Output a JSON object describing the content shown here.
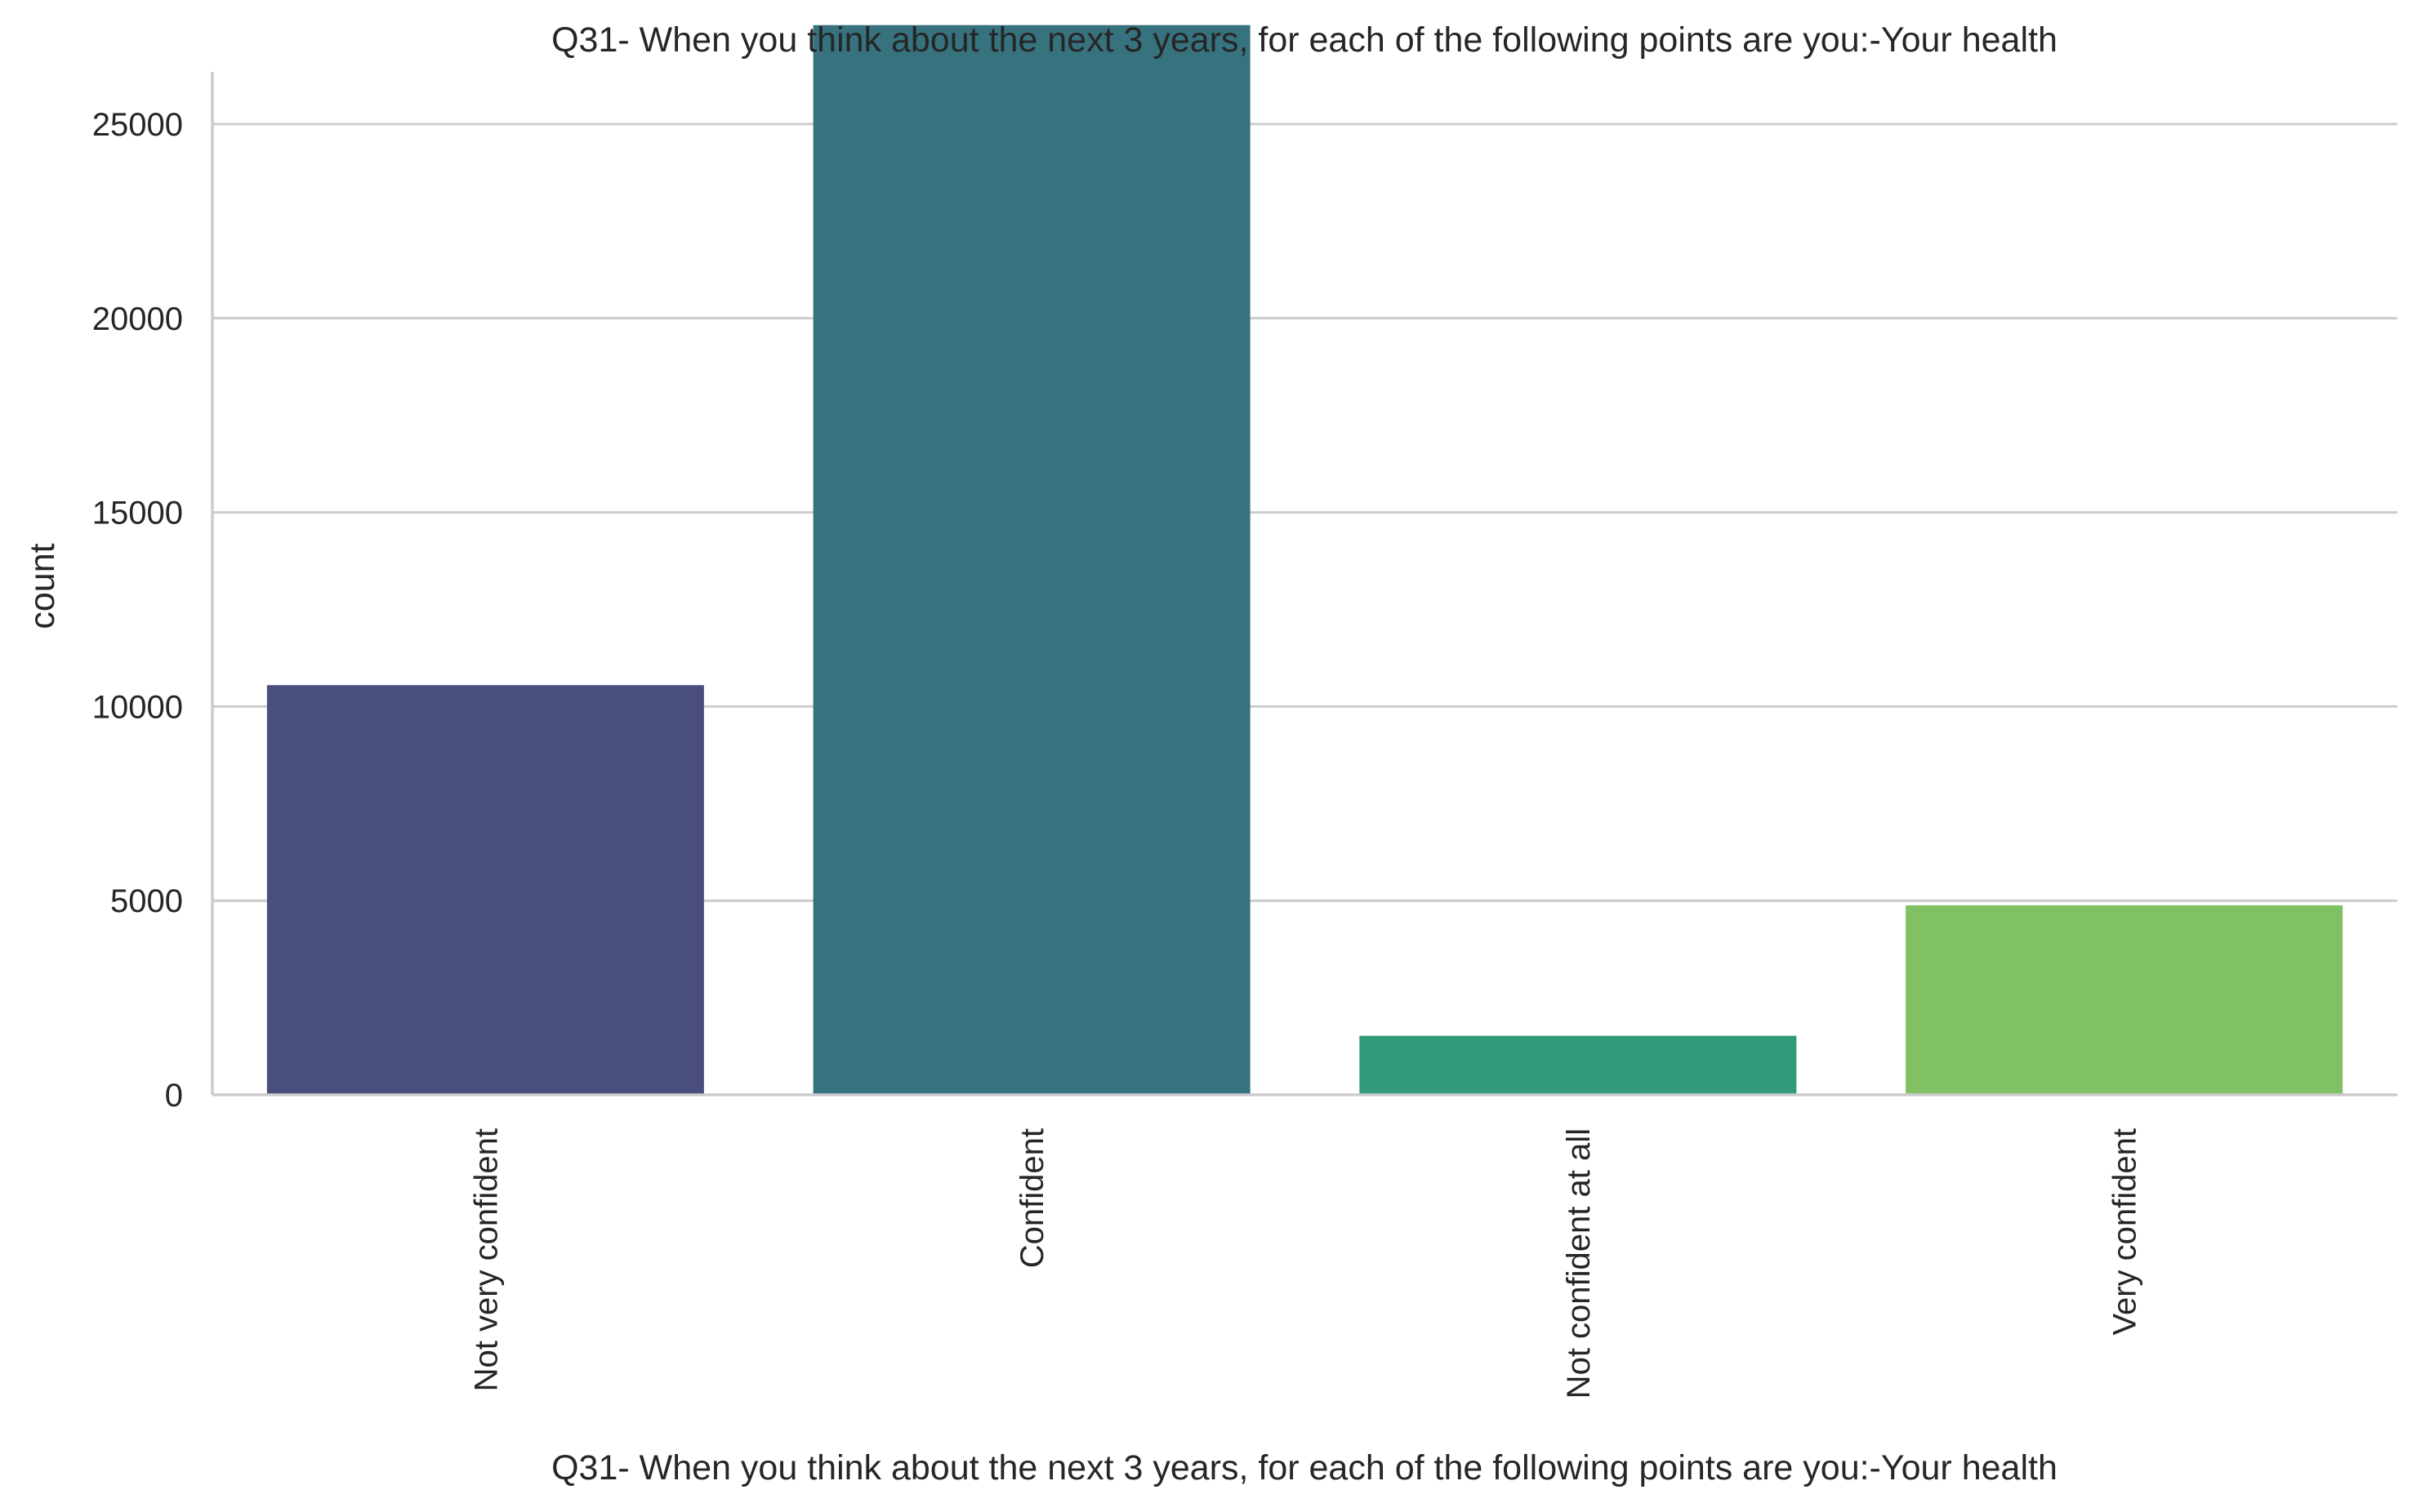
{
  "chart_data": {
    "type": "bar",
    "title": "Q31- When you think about the next 3 years, for each of the following points are you:-Your health",
    "xlabel": "Q31- When you think about the next 3 years, for each of the following points are you:-Your health",
    "ylabel": "count",
    "categories": [
      "Not very confident",
      "Confident",
      "Not confident at all",
      "Very confident"
    ],
    "values": [
      10550,
      27550,
      1520,
      4880
    ],
    "colors": [
      "#4a4e7d",
      "#37727f",
      "#33997b",
      "#80c263"
    ],
    "ylim": [
      0,
      29000
    ],
    "yticks": [
      0,
      5000,
      10000,
      15000,
      20000,
      25000
    ],
    "grid": "horizontal",
    "legend": "none"
  }
}
